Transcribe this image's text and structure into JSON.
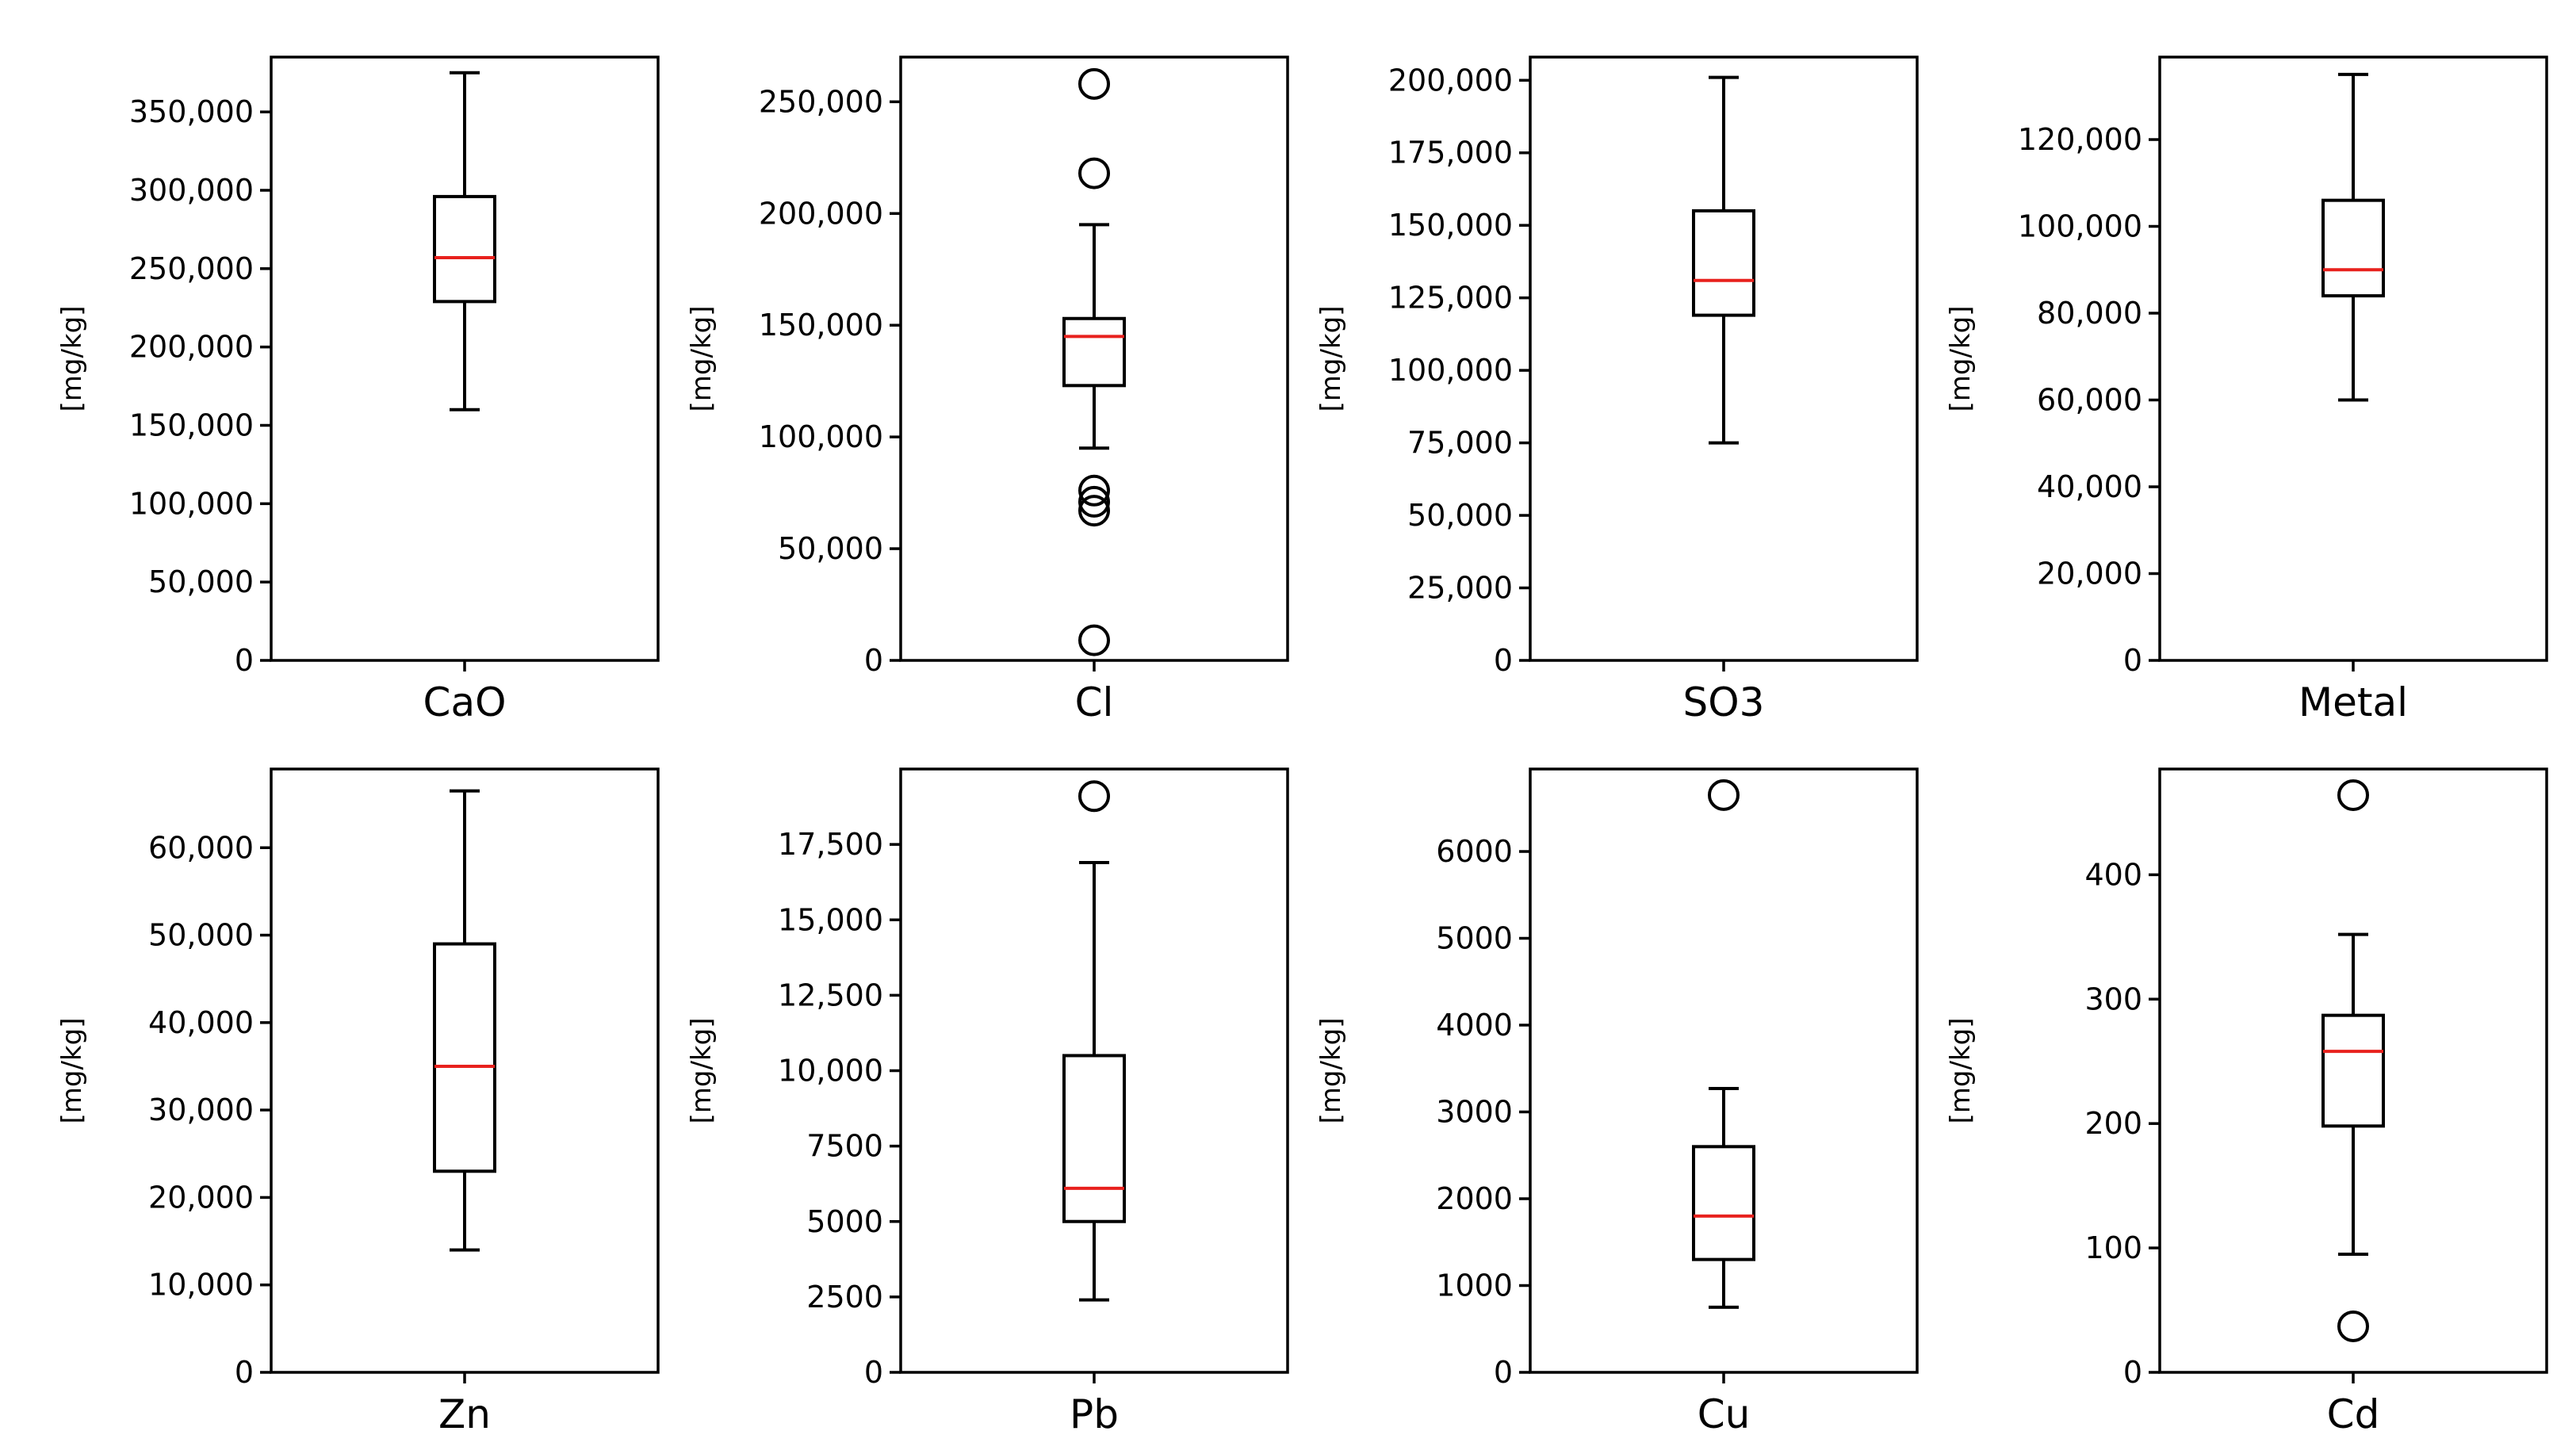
{
  "chart_data": [
    {
      "type": "boxplot",
      "category": "CaO",
      "ylabel": "[mg/kg]",
      "ylim": [
        0,
        385000
      ],
      "yticks": [
        0,
        50000,
        100000,
        150000,
        200000,
        250000,
        300000,
        350000
      ],
      "ytick_labels": [
        "0",
        "50,000",
        "100,000",
        "150,000",
        "200,000",
        "250,000",
        "300,000",
        "350,000"
      ],
      "whisker_low": 160000,
      "q1": 229000,
      "median": 257000,
      "q3": 296000,
      "whisker_high": 375000,
      "outliers": []
    },
    {
      "type": "boxplot",
      "category": "Cl",
      "ylabel": "[mg/kg]",
      "ylim": [
        0,
        270000
      ],
      "yticks": [
        0,
        50000,
        100000,
        150000,
        200000,
        250000
      ],
      "ytick_labels": [
        "0",
        "50,000",
        "100,000",
        "150,000",
        "200,000",
        "250,000"
      ],
      "whisker_low": 95000,
      "q1": 123000,
      "median": 145000,
      "q3": 153000,
      "whisker_high": 195000,
      "outliers": [
        258000,
        218000,
        76000,
        71000,
        67000,
        9000
      ]
    },
    {
      "type": "boxplot",
      "category": "SO3",
      "ylabel": "[mg/kg]",
      "ylim": [
        0,
        208000
      ],
      "yticks": [
        0,
        25000,
        50000,
        75000,
        100000,
        125000,
        150000,
        175000,
        200000
      ],
      "ytick_labels": [
        "0",
        "25,000",
        "50,000",
        "75,000",
        "100,000",
        "125,000",
        "150,000",
        "175,000",
        "200,000"
      ],
      "whisker_low": 75000,
      "q1": 119000,
      "median": 131000,
      "q3": 155000,
      "whisker_high": 201000,
      "outliers": []
    },
    {
      "type": "boxplot",
      "category": "Metal",
      "ylabel": "[mg/kg]",
      "ylim": [
        0,
        139000
      ],
      "yticks": [
        0,
        20000,
        40000,
        60000,
        80000,
        100000,
        120000
      ],
      "ytick_labels": [
        "0",
        "20,000",
        "40,000",
        "60,000",
        "80,000",
        "100,000",
        "120,000"
      ],
      "whisker_low": 60000,
      "q1": 84000,
      "median": 90000,
      "q3": 106000,
      "whisker_high": 135000,
      "outliers": []
    },
    {
      "type": "boxplot",
      "category": "Zn",
      "ylabel": "[mg/kg]",
      "ylim": [
        0,
        69000
      ],
      "yticks": [
        0,
        10000,
        20000,
        30000,
        40000,
        50000,
        60000
      ],
      "ytick_labels": [
        "0",
        "10,000",
        "20,000",
        "30,000",
        "40,000",
        "50,000",
        "60,000"
      ],
      "whisker_low": 14000,
      "q1": 23000,
      "median": 35000,
      "q3": 49000,
      "whisker_high": 66500,
      "outliers": []
    },
    {
      "type": "boxplot",
      "category": "Pb",
      "ylabel": "[mg/kg]",
      "ylim": [
        0,
        20000
      ],
      "yticks": [
        0,
        2500,
        5000,
        7500,
        10000,
        12500,
        15000,
        17500
      ],
      "ytick_labels": [
        "0",
        "2500",
        "5000",
        "7500",
        "10,000",
        "12,500",
        "15,000",
        "17,500"
      ],
      "whisker_low": 2400,
      "q1": 5000,
      "median": 6100,
      "q3": 10500,
      "whisker_high": 16900,
      "outliers": [
        19100
      ]
    },
    {
      "type": "boxplot",
      "category": "Cu",
      "ylabel": "[mg/kg]",
      "ylim": [
        0,
        6950
      ],
      "yticks": [
        0,
        1000,
        2000,
        3000,
        4000,
        5000,
        6000
      ],
      "ytick_labels": [
        "0",
        "1000",
        "2000",
        "3000",
        "4000",
        "5000",
        "6000"
      ],
      "whisker_low": 750,
      "q1": 1300,
      "median": 1800,
      "q3": 2600,
      "whisker_high": 3270,
      "outliers": [
        6650
      ]
    },
    {
      "type": "boxplot",
      "category": "Cd",
      "ylabel": "[mg/kg]",
      "ylim": [
        0,
        485
      ],
      "yticks": [
        0,
        100,
        200,
        300,
        400
      ],
      "ytick_labels": [
        "0",
        "100",
        "200",
        "300",
        "400"
      ],
      "whisker_low": 95,
      "q1": 198,
      "median": 258,
      "q3": 287,
      "whisker_high": 352,
      "outliers": [
        464,
        37
      ]
    }
  ],
  "colors": {
    "axes": "#000000",
    "box": "#000000",
    "median": "#e8211d",
    "background": "#ffffff"
  }
}
